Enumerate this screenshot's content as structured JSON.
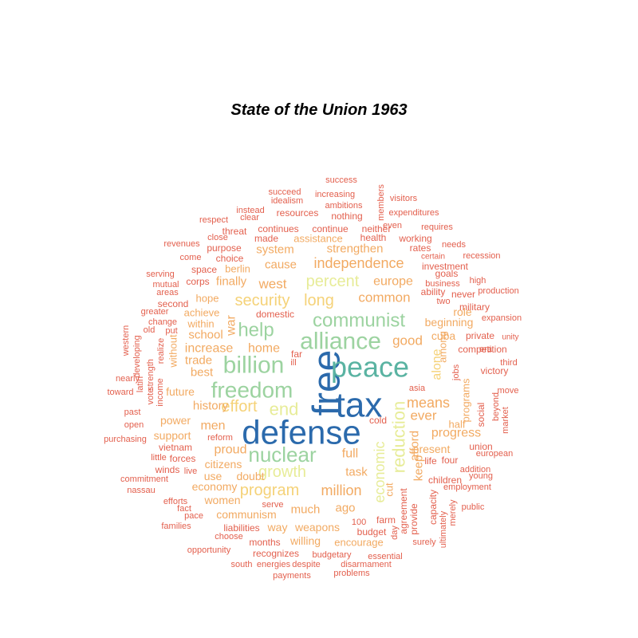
{
  "chart_data": {
    "type": "wordcloud",
    "title": "State of the Union 1963",
    "palette": {
      "1": "#2b6aac",
      "2": "#5ab3a2",
      "3": "#9cd3a0",
      "4": "#e7ec98",
      "5": "#f5d278",
      "6": "#f2aa62",
      "7": "#ea8655",
      "8": "#e3604e"
    },
    "words": [
      {
        "text": "free",
        "tier": 1
      },
      {
        "text": "tax",
        "tier": 1
      },
      {
        "text": "defense",
        "tier": 1
      },
      {
        "text": "peace",
        "tier": 2
      },
      {
        "text": "alliance",
        "tier": 3
      },
      {
        "text": "billion",
        "tier": 3
      },
      {
        "text": "freedom",
        "tier": 3
      },
      {
        "text": "nuclear",
        "tier": 3
      },
      {
        "text": "communist",
        "tier": 3
      },
      {
        "text": "help",
        "tier": 3
      },
      {
        "text": "reduction",
        "tier": 4
      },
      {
        "text": "economic",
        "tier": 4
      },
      {
        "text": "end",
        "tier": 4
      },
      {
        "text": "percent",
        "tier": 4
      },
      {
        "text": "growth",
        "tier": 4
      },
      {
        "text": "security",
        "tier": 5
      },
      {
        "text": "long",
        "tier": 5
      },
      {
        "text": "effort",
        "tier": 5
      },
      {
        "text": "program",
        "tier": 5
      },
      {
        "text": "alone",
        "tier": 5
      },
      {
        "text": "independence",
        "tier": 6
      },
      {
        "text": "common",
        "tier": 6
      },
      {
        "text": "europe",
        "tier": 6
      },
      {
        "text": "good",
        "tier": 6
      },
      {
        "text": "west",
        "tier": 6
      },
      {
        "text": "means",
        "tier": 6
      },
      {
        "text": "ever",
        "tier": 6
      },
      {
        "text": "progress",
        "tier": 6
      },
      {
        "text": "system",
        "tier": 6
      },
      {
        "text": "strengthen",
        "tier": 6
      },
      {
        "text": "cause",
        "tier": 6
      },
      {
        "text": "war",
        "tier": 6
      },
      {
        "text": "school",
        "tier": 6
      },
      {
        "text": "increase",
        "tier": 6
      },
      {
        "text": "home",
        "tier": 6
      },
      {
        "text": "trade",
        "tier": 6
      },
      {
        "text": "best",
        "tier": 6
      },
      {
        "text": "history",
        "tier": 6
      },
      {
        "text": "men",
        "tier": 6
      },
      {
        "text": "proud",
        "tier": 6
      },
      {
        "text": "million",
        "tier": 6
      },
      {
        "text": "full",
        "tier": 6
      },
      {
        "text": "task",
        "tier": 6
      },
      {
        "text": "much",
        "tier": 6
      },
      {
        "text": "ago",
        "tier": 6
      },
      {
        "text": "finally",
        "tier": 6
      },
      {
        "text": "future",
        "tier": 6
      },
      {
        "text": "power",
        "tier": 6
      },
      {
        "text": "support",
        "tier": 6
      },
      {
        "text": "citizens",
        "tier": 6
      },
      {
        "text": "economy",
        "tier": 6
      },
      {
        "text": "doubt",
        "tier": 6
      },
      {
        "text": "use",
        "tier": 6
      },
      {
        "text": "women",
        "tier": 6
      },
      {
        "text": "communism",
        "tier": 6
      },
      {
        "text": "way",
        "tier": 6
      },
      {
        "text": "weapons",
        "tier": 6
      },
      {
        "text": "willing",
        "tier": 6
      },
      {
        "text": "keep",
        "tier": 6
      },
      {
        "text": "afford",
        "tier": 6
      },
      {
        "text": "present",
        "tier": 6
      },
      {
        "text": "beginning",
        "tier": 6
      },
      {
        "text": "programs",
        "tier": 6
      },
      {
        "text": "cuba",
        "tier": 6
      },
      {
        "text": "role",
        "tier": 6
      },
      {
        "text": "among",
        "tier": 6
      },
      {
        "text": "hope",
        "tier": 6
      },
      {
        "text": "achieve",
        "tier": 6
      },
      {
        "text": "within",
        "tier": 6
      },
      {
        "text": "without",
        "tier": 6
      },
      {
        "text": "assistance",
        "tier": 6
      },
      {
        "text": "berlin",
        "tier": 6
      },
      {
        "text": "cut",
        "tier": 6
      },
      {
        "text": "half",
        "tier": 6
      },
      {
        "text": "encourage",
        "tier": 6
      },
      {
        "text": "success",
        "tier": 8
      },
      {
        "text": "succeed",
        "tier": 8
      },
      {
        "text": "increasing",
        "tier": 8
      },
      {
        "text": "members",
        "tier": 8
      },
      {
        "text": "visitors",
        "tier": 8
      },
      {
        "text": "idealism",
        "tier": 8
      },
      {
        "text": "ambitions",
        "tier": 8
      },
      {
        "text": "instead",
        "tier": 8
      },
      {
        "text": "resources",
        "tier": 8
      },
      {
        "text": "nothing",
        "tier": 8
      },
      {
        "text": "expenditures",
        "tier": 8
      },
      {
        "text": "respect",
        "tier": 8
      },
      {
        "text": "clear",
        "tier": 8
      },
      {
        "text": "even",
        "tier": 8
      },
      {
        "text": "requires",
        "tier": 8
      },
      {
        "text": "threat",
        "tier": 8
      },
      {
        "text": "continues",
        "tier": 8
      },
      {
        "text": "continue",
        "tier": 8
      },
      {
        "text": "neither",
        "tier": 8
      },
      {
        "text": "close",
        "tier": 8
      },
      {
        "text": "made",
        "tier": 8
      },
      {
        "text": "health",
        "tier": 8
      },
      {
        "text": "working",
        "tier": 8
      },
      {
        "text": "revenues",
        "tier": 8
      },
      {
        "text": "purpose",
        "tier": 8
      },
      {
        "text": "rates",
        "tier": 8
      },
      {
        "text": "needs",
        "tier": 8
      },
      {
        "text": "come",
        "tier": 8
      },
      {
        "text": "choice",
        "tier": 8
      },
      {
        "text": "certain",
        "tier": 8
      },
      {
        "text": "recession",
        "tier": 8
      },
      {
        "text": "space",
        "tier": 8
      },
      {
        "text": "investment",
        "tier": 8
      },
      {
        "text": "serving",
        "tier": 8
      },
      {
        "text": "goals",
        "tier": 8
      },
      {
        "text": "mutual",
        "tier": 8
      },
      {
        "text": "corps",
        "tier": 8
      },
      {
        "text": "business",
        "tier": 8
      },
      {
        "text": "high",
        "tier": 8
      },
      {
        "text": "areas",
        "tier": 8
      },
      {
        "text": "ability",
        "tier": 8
      },
      {
        "text": "never",
        "tier": 8
      },
      {
        "text": "production",
        "tier": 8
      },
      {
        "text": "second",
        "tier": 8
      },
      {
        "text": "military",
        "tier": 8
      },
      {
        "text": "greater",
        "tier": 8
      },
      {
        "text": "domestic",
        "tier": 8
      },
      {
        "text": "expansion",
        "tier": 8
      },
      {
        "text": "change",
        "tier": 8
      },
      {
        "text": "western",
        "tier": 8
      },
      {
        "text": "old",
        "tier": 8
      },
      {
        "text": "put",
        "tier": 8
      },
      {
        "text": "private",
        "tier": 8
      },
      {
        "text": "unity",
        "tier": 8
      },
      {
        "text": "developing",
        "tier": 8
      },
      {
        "text": "realize",
        "tier": 8
      },
      {
        "text": "far",
        "tier": 8
      },
      {
        "text": "era",
        "tier": 8
      },
      {
        "text": "third",
        "tier": 8
      },
      {
        "text": "strength",
        "tier": 8
      },
      {
        "text": "latin",
        "tier": 8
      },
      {
        "text": "ill",
        "tier": 8
      },
      {
        "text": "competition",
        "tier": 8
      },
      {
        "text": "nearly",
        "tier": 8
      },
      {
        "text": "victory",
        "tier": 8
      },
      {
        "text": "jobs",
        "tier": 8
      },
      {
        "text": "income",
        "tier": 8
      },
      {
        "text": "vote",
        "tier": 8
      },
      {
        "text": "toward",
        "tier": 8
      },
      {
        "text": "asia",
        "tier": 8
      },
      {
        "text": "social",
        "tier": 8
      },
      {
        "text": "move",
        "tier": 8
      },
      {
        "text": "past",
        "tier": 8
      },
      {
        "text": "beyond",
        "tier": 8
      },
      {
        "text": "cold",
        "tier": 8
      },
      {
        "text": "open",
        "tier": 8
      },
      {
        "text": "market",
        "tier": 8
      },
      {
        "text": "purchasing",
        "tier": 8
      },
      {
        "text": "reform",
        "tier": 8
      },
      {
        "text": "union",
        "tier": 8
      },
      {
        "text": "vietnam",
        "tier": 8
      },
      {
        "text": "european",
        "tier": 8
      },
      {
        "text": "little",
        "tier": 8
      },
      {
        "text": "forces",
        "tier": 8
      },
      {
        "text": "life",
        "tier": 8
      },
      {
        "text": "four",
        "tier": 8
      },
      {
        "text": "winds",
        "tier": 8
      },
      {
        "text": "live",
        "tier": 8
      },
      {
        "text": "addition",
        "tier": 8
      },
      {
        "text": "commitment",
        "tier": 8
      },
      {
        "text": "children",
        "tier": 8
      },
      {
        "text": "young",
        "tier": 8
      },
      {
        "text": "nassau",
        "tier": 8
      },
      {
        "text": "employment",
        "tier": 8
      },
      {
        "text": "efforts",
        "tier": 8
      },
      {
        "text": "fact",
        "tier": 8
      },
      {
        "text": "serve",
        "tier": 8
      },
      {
        "text": "capacity",
        "tier": 8
      },
      {
        "text": "public",
        "tier": 8
      },
      {
        "text": "pace",
        "tier": 8
      },
      {
        "text": "agreement",
        "tier": 8
      },
      {
        "text": "merely",
        "tier": 8
      },
      {
        "text": "families",
        "tier": 8
      },
      {
        "text": "liabilities",
        "tier": 8
      },
      {
        "text": "100",
        "tier": 8
      },
      {
        "text": "farm",
        "tier": 8
      },
      {
        "text": "provide",
        "tier": 8
      },
      {
        "text": "day",
        "tier": 8
      },
      {
        "text": "ultimately",
        "tier": 8
      },
      {
        "text": "choose",
        "tier": 8
      },
      {
        "text": "months",
        "tier": 8
      },
      {
        "text": "budget",
        "tier": 8
      },
      {
        "text": "surely",
        "tier": 8
      },
      {
        "text": "opportunity",
        "tier": 8
      },
      {
        "text": "recognizes",
        "tier": 8
      },
      {
        "text": "budgetary",
        "tier": 8
      },
      {
        "text": "essential",
        "tier": 8
      },
      {
        "text": "south",
        "tier": 8
      },
      {
        "text": "energies",
        "tier": 8
      },
      {
        "text": "despite",
        "tier": 8
      },
      {
        "text": "disarmament",
        "tier": 8
      },
      {
        "text": "payments",
        "tier": 8
      },
      {
        "text": "problems",
        "tier": 8
      },
      {
        "text": "two",
        "tier": 8
      }
    ]
  }
}
